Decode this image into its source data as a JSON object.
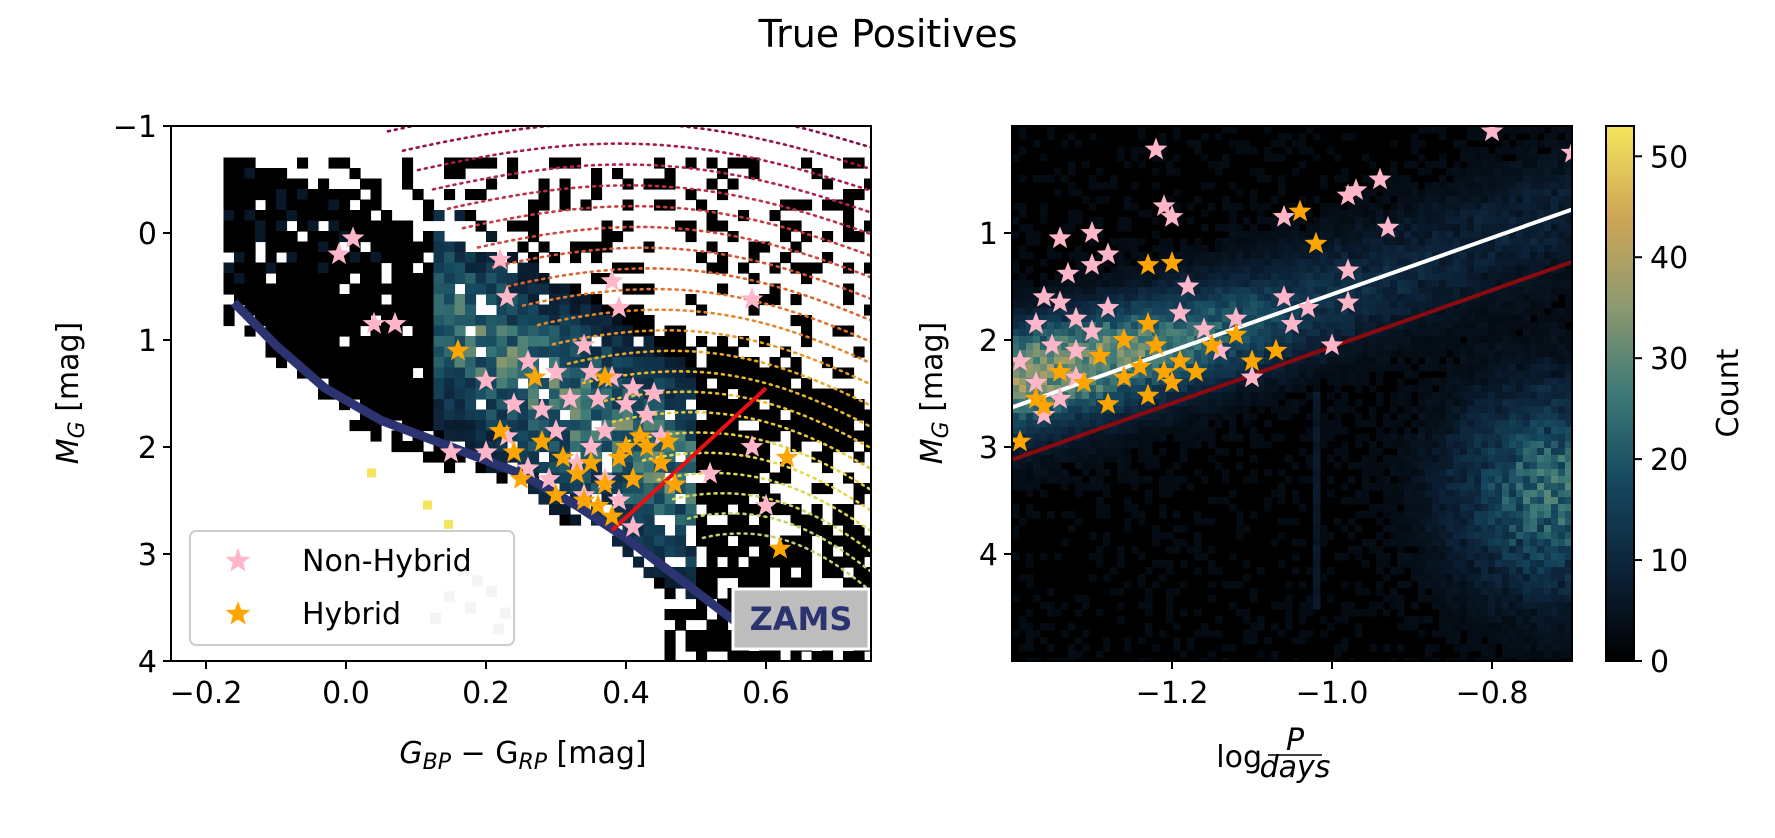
{
  "title": "True Positives",
  "chart_data": [
    {
      "type": "scatter",
      "panel": "left",
      "xlabel": "G_BP − G_RP [mag]",
      "xlabel_main": "G",
      "xlabel_sub1": "BP",
      "xlabel_mid": " − G",
      "xlabel_sub2": "RP",
      "xlabel_unit": " [mag]",
      "ylabel_main": "M",
      "ylabel_sub": "G",
      "ylabel_unit": " [mag]",
      "xlim": [
        -0.25,
        0.75
      ],
      "ylim": [
        4,
        -1
      ],
      "y_inverted": true,
      "xticks": [
        "−0.2",
        "0.0",
        "0.2",
        "0.4",
        "0.6"
      ],
      "xtick_values": [
        -0.2,
        0.0,
        0.2,
        0.4,
        0.6
      ],
      "yticks": [
        "−1",
        "0",
        "1",
        "2",
        "3",
        "4"
      ],
      "ytick_values": [
        -1,
        0,
        1,
        2,
        3,
        4
      ],
      "background": "2D density histogram of all stars (colour-magnitude diagram)",
      "zams_label": "ZAMS",
      "zams_color": "#2b3370",
      "zams_curve": [
        [
          -0.16,
          0.65
        ],
        [
          -0.1,
          1.05
        ],
        [
          -0.03,
          1.45
        ],
        [
          0.05,
          1.75
        ],
        [
          0.15,
          2.0
        ],
        [
          0.25,
          2.25
        ],
        [
          0.33,
          2.55
        ],
        [
          0.4,
          2.85
        ],
        [
          0.46,
          3.15
        ],
        [
          0.51,
          3.4
        ],
        [
          0.56,
          3.65
        ]
      ],
      "boundary_line": {
        "color": "#e81010",
        "points": [
          [
            0.38,
            2.78
          ],
          [
            0.6,
            1.45
          ]
        ]
      },
      "legend": [
        {
          "label": "Non-Hybrid",
          "color": "#ffb6c8"
        },
        {
          "label": "Hybrid",
          "color": "#ffa500"
        }
      ],
      "series": [
        {
          "name": "Non-Hybrid",
          "marker": "star",
          "color": "#ffb6c8",
          "points": [
            [
              0.01,
              0.05
            ],
            [
              -0.01,
              0.2
            ],
            [
              0.04,
              0.85
            ],
            [
              0.07,
              0.85
            ],
            [
              0.22,
              0.25
            ],
            [
              0.23,
              0.6
            ],
            [
              0.38,
              0.45
            ],
            [
              0.39,
              0.7
            ],
            [
              0.58,
              0.62
            ],
            [
              0.2,
              1.38
            ],
            [
              0.26,
              1.2
            ],
            [
              0.3,
              1.3
            ],
            [
              0.34,
              1.05
            ],
            [
              0.35,
              1.3
            ],
            [
              0.32,
              1.55
            ],
            [
              0.28,
              1.65
            ],
            [
              0.24,
              1.6
            ],
            [
              0.3,
              1.85
            ],
            [
              0.36,
              1.55
            ],
            [
              0.38,
              1.35
            ],
            [
              0.4,
              1.6
            ],
            [
              0.41,
              1.45
            ],
            [
              0.43,
              1.7
            ],
            [
              0.44,
              1.5
            ],
            [
              0.45,
              1.9
            ],
            [
              0.37,
              1.85
            ],
            [
              0.35,
              2.0
            ],
            [
              0.33,
              2.15
            ],
            [
              0.29,
              2.3
            ],
            [
              0.26,
              2.2
            ],
            [
              0.23,
              1.9
            ],
            [
              0.2,
              2.05
            ],
            [
              0.34,
              2.45
            ],
            [
              0.37,
              2.3
            ],
            [
              0.39,
              2.5
            ],
            [
              0.41,
              2.75
            ],
            [
              0.52,
              2.25
            ],
            [
              0.58,
              2.0
            ],
            [
              0.6,
              2.55
            ],
            [
              0.15,
              2.05
            ]
          ]
        },
        {
          "name": "Hybrid",
          "marker": "star",
          "color": "#ffa500",
          "points": [
            [
              0.16,
              1.1
            ],
            [
              0.27,
              1.35
            ],
            [
              0.37,
              1.35
            ],
            [
              0.22,
              1.85
            ],
            [
              0.24,
              2.05
            ],
            [
              0.28,
              1.95
            ],
            [
              0.31,
              2.1
            ],
            [
              0.33,
              2.25
            ],
            [
              0.35,
              2.15
            ],
            [
              0.37,
              2.35
            ],
            [
              0.39,
              2.1
            ],
            [
              0.41,
              2.3
            ],
            [
              0.43,
              2.0
            ],
            [
              0.45,
              2.15
            ],
            [
              0.36,
              2.55
            ],
            [
              0.38,
              2.65
            ],
            [
              0.34,
              2.5
            ],
            [
              0.4,
              2.0
            ],
            [
              0.42,
              1.9
            ],
            [
              0.46,
              1.95
            ],
            [
              0.47,
              2.35
            ],
            [
              0.3,
              2.45
            ],
            [
              0.25,
              2.3
            ],
            [
              0.63,
              2.1
            ],
            [
              0.62,
              2.95
            ]
          ]
        }
      ]
    },
    {
      "type": "heatmap",
      "panel": "right",
      "xlabel": "log P/days",
      "xlabel_log": "log",
      "xlabel_num": "P",
      "xlabel_den": "days",
      "ylabel_main": "M",
      "ylabel_sub": "G",
      "ylabel_unit": " [mag]",
      "xlim": [
        -1.4,
        -0.7
      ],
      "ylim": [
        5.0,
        0.0
      ],
      "y_inverted": true,
      "xticks": [
        "−1.2",
        "−1.0",
        "−0.8"
      ],
      "xtick_values": [
        -1.2,
        -1.0,
        -0.8
      ],
      "yticks": [
        "1",
        "2",
        "3",
        "4"
      ],
      "ytick_values": [
        1,
        2,
        3,
        4
      ],
      "colorbar": {
        "label": "Count",
        "min": 0,
        "max": 53,
        "ticks": [
          "0",
          "10",
          "20",
          "30",
          "40",
          "50"
        ],
        "tick_values": [
          0,
          10,
          20,
          30,
          40,
          50
        ],
        "colors": [
          "#000000",
          "#0c2238",
          "#15475e",
          "#3d7a78",
          "#8f9a6f",
          "#cfa656",
          "#f4e55c"
        ]
      },
      "lines": [
        {
          "color": "#ffffff",
          "points": [
            [
              -1.4,
              2.63
            ],
            [
              -0.7,
              0.78
            ]
          ]
        },
        {
          "color": "#8b0a10",
          "points": [
            [
              -1.4,
              3.12
            ],
            [
              -0.7,
              1.27
            ]
          ]
        }
      ],
      "series": [
        {
          "name": "Non-Hybrid",
          "marker": "star",
          "color": "#ffb6c8",
          "points": [
            [
              -1.22,
              0.22
            ],
            [
              -0.8,
              0.05
            ],
            [
              -0.7,
              0.25
            ],
            [
              -1.34,
              1.05
            ],
            [
              -1.3,
              1.0
            ],
            [
              -1.33,
              1.38
            ],
            [
              -1.3,
              1.3
            ],
            [
              -1.28,
              1.2
            ],
            [
              -1.36,
              1.6
            ],
            [
              -1.34,
              1.65
            ],
            [
              -1.32,
              1.8
            ],
            [
              -1.37,
              1.85
            ],
            [
              -1.35,
              2.05
            ],
            [
              -1.32,
              2.1
            ],
            [
              -1.3,
              1.92
            ],
            [
              -1.28,
              1.7
            ],
            [
              -1.21,
              0.75
            ],
            [
              -1.2,
              0.85
            ],
            [
              -1.18,
              1.5
            ],
            [
              -1.19,
              1.75
            ],
            [
              -1.16,
              1.9
            ],
            [
              -1.14,
              2.1
            ],
            [
              -1.12,
              1.8
            ],
            [
              -1.1,
              2.35
            ],
            [
              -1.06,
              1.6
            ],
            [
              -1.05,
              1.85
            ],
            [
              -1.06,
              0.85
            ],
            [
              -1.03,
              1.7
            ],
            [
              -0.98,
              0.65
            ],
            [
              -0.97,
              0.6
            ],
            [
              -0.94,
              0.5
            ],
            [
              -0.93,
              0.95
            ],
            [
              -0.98,
              1.35
            ],
            [
              -0.98,
              1.65
            ],
            [
              -1.0,
              2.05
            ],
            [
              -1.37,
              2.4
            ],
            [
              -1.34,
              2.55
            ],
            [
              -1.32,
              2.35
            ],
            [
              -1.39,
              2.2
            ],
            [
              -1.36,
              2.7
            ]
          ]
        },
        {
          "name": "Hybrid",
          "marker": "star",
          "color": "#ffa500",
          "points": [
            [
              -1.04,
              0.8
            ],
            [
              -1.02,
              1.1
            ],
            [
              -1.23,
              1.3
            ],
            [
              -1.2,
              1.28
            ],
            [
              -1.23,
              1.85
            ],
            [
              -1.22,
              2.05
            ],
            [
              -1.24,
              2.25
            ],
            [
              -1.21,
              2.3
            ],
            [
              -1.19,
              2.2
            ],
            [
              -1.2,
              2.4
            ],
            [
              -1.23,
              2.52
            ],
            [
              -1.26,
              2.35
            ],
            [
              -1.29,
              2.15
            ],
            [
              -1.31,
              2.4
            ],
            [
              -1.34,
              2.3
            ],
            [
              -1.37,
              2.55
            ],
            [
              -1.39,
              2.95
            ],
            [
              -1.12,
              1.95
            ],
            [
              -1.1,
              2.2
            ],
            [
              -1.07,
              2.1
            ],
            [
              -1.15,
              2.05
            ],
            [
              -1.17,
              2.3
            ],
            [
              -1.26,
              2.0
            ],
            [
              -1.28,
              2.6
            ],
            [
              -1.36,
              2.62
            ]
          ]
        }
      ]
    }
  ]
}
